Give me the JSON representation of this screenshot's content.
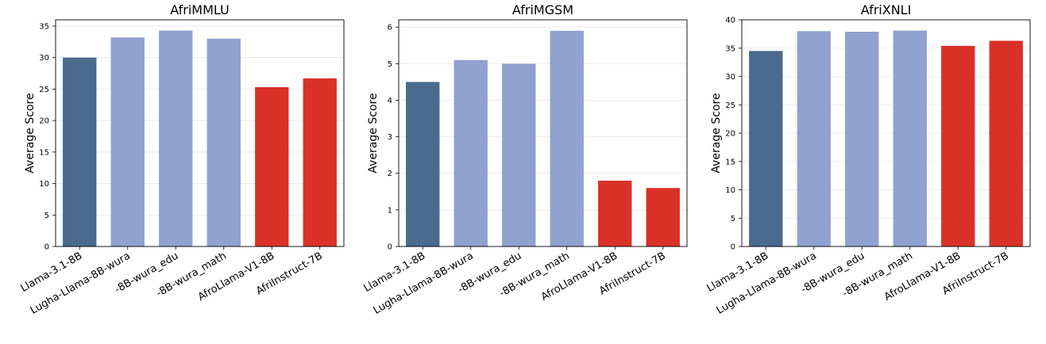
{
  "chart_data": [
    {
      "type": "bar",
      "title": "AfriMMLU",
      "ylabel": "Average Score",
      "xlabel": "",
      "ylim": [
        0,
        36
      ],
      "yticks": [
        0,
        5,
        10,
        15,
        20,
        25,
        30,
        35
      ],
      "grid": "horizontal",
      "categories": [
        "Llama-3.1-8B",
        "Lugha-Llama-8B-wura",
        "-8B-wura_edu",
        "-8B-wura_math",
        "AfroLlama-V1-8B",
        "AfriInstruct-7B"
      ],
      "values": [
        30.0,
        33.2,
        34.3,
        33.0,
        25.3,
        26.7
      ],
      "colors": [
        "#4a6a8f",
        "#8fa1ce",
        "#8fa1ce",
        "#8fa1ce",
        "#d93127",
        "#d93127"
      ]
    },
    {
      "type": "bar",
      "title": "AfriMGSM",
      "ylabel": "Average Score",
      "xlabel": "",
      "ylim": [
        0,
        6.2
      ],
      "yticks": [
        0,
        1,
        2,
        3,
        4,
        5,
        6
      ],
      "grid": "horizontal",
      "categories": [
        "Llama-3.1-8B",
        "Lugha-Llama-8B-wura",
        "-8B-wura_edu",
        "-8B-wura_math",
        "AfroLlama-V1-8B",
        "AfriInstruct-7B"
      ],
      "values": [
        4.5,
        5.1,
        5.0,
        5.9,
        1.8,
        1.6
      ],
      "colors": [
        "#4a6a8f",
        "#8fa1ce",
        "#8fa1ce",
        "#8fa1ce",
        "#d93127",
        "#d93127"
      ]
    },
    {
      "type": "bar",
      "title": "AfriXNLI",
      "ylabel": "Average Score",
      "xlabel": "",
      "ylim": [
        0,
        40
      ],
      "yticks": [
        0,
        5,
        10,
        15,
        20,
        25,
        30,
        35,
        40
      ],
      "grid": "horizontal",
      "categories": [
        "Llama-3.1-8B",
        "Lugha-Llama-8B-wura",
        "-8B-wura_edu",
        "-8B-wura_math",
        "AfroLlama-V1-8B",
        "AfriInstruct-7B"
      ],
      "values": [
        34.5,
        38.0,
        37.9,
        38.1,
        35.4,
        36.3
      ],
      "colors": [
        "#4a6a8f",
        "#8fa1ce",
        "#8fa1ce",
        "#8fa1ce",
        "#d93127",
        "#d93127"
      ]
    }
  ]
}
